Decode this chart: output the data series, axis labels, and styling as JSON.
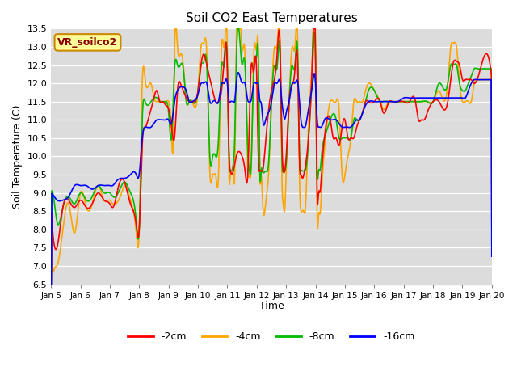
{
  "title": "Soil CO2 East Temperatures",
  "xlabel": "Time",
  "ylabel": "Soil Temperature (C)",
  "ylim": [
    6.5,
    13.5
  ],
  "colors": {
    "2cm": "#ff0000",
    "4cm": "#ffa500",
    "8cm": "#00bb00",
    "16cm": "#0000ff"
  },
  "legend_labels": [
    "-2cm",
    "-4cm",
    "-8cm",
    "-16cm"
  ],
  "annotation_text": "VR_soilco2",
  "annotation_bg": "#ffff99",
  "annotation_border": "#cc8800",
  "annotation_text_color": "#880000",
  "background_color": "#dcdcdc",
  "grid_color": "#ffffff",
  "x_labels": [
    "Jan 5",
    "Jan 6",
    "Jan 7",
    "Jan 8",
    "Jan 9",
    "Jan 10",
    "Jan 11",
    "Jan 12",
    "Jan 13",
    "Jan 14",
    "Jan 15",
    "Jan 16",
    "Jan 17",
    "Jan 18",
    "Jan 19",
    "Jan 20"
  ],
  "line_width": 1.2,
  "keypoints_2cm": [
    [
      0.0,
      8.6
    ],
    [
      0.1,
      7.6
    ],
    [
      0.2,
      7.5
    ],
    [
      0.4,
      8.6
    ],
    [
      0.6,
      8.8
    ],
    [
      0.8,
      8.6
    ],
    [
      1.0,
      8.8
    ],
    [
      1.2,
      8.6
    ],
    [
      1.4,
      8.7
    ],
    [
      1.6,
      9.0
    ],
    [
      1.8,
      8.8
    ],
    [
      2.0,
      8.7
    ],
    [
      2.1,
      8.6
    ],
    [
      2.3,
      9.2
    ],
    [
      2.5,
      9.3
    ],
    [
      2.7,
      8.7
    ],
    [
      2.9,
      8.1
    ],
    [
      3.0,
      8.0
    ],
    [
      3.1,
      10.3
    ],
    [
      3.2,
      10.8
    ],
    [
      3.3,
      11.0
    ],
    [
      3.5,
      11.6
    ],
    [
      3.6,
      11.8
    ],
    [
      3.7,
      11.5
    ],
    [
      3.8,
      11.5
    ],
    [
      3.9,
      11.4
    ],
    [
      4.0,
      11.3
    ],
    [
      4.1,
      10.8
    ],
    [
      4.2,
      10.5
    ],
    [
      4.3,
      11.8
    ],
    [
      4.4,
      12.0
    ],
    [
      4.5,
      11.8
    ],
    [
      4.6,
      11.6
    ],
    [
      4.7,
      11.5
    ],
    [
      4.8,
      11.5
    ],
    [
      5.0,
      11.8
    ],
    [
      5.1,
      12.5
    ],
    [
      5.2,
      12.8
    ],
    [
      5.3,
      12.5
    ],
    [
      5.5,
      11.8
    ],
    [
      5.6,
      11.5
    ],
    [
      5.7,
      11.5
    ],
    [
      5.8,
      11.8
    ],
    [
      5.9,
      12.8
    ],
    [
      6.0,
      12.3
    ],
    [
      6.05,
      10.2
    ],
    [
      6.1,
      9.6
    ],
    [
      6.15,
      9.5
    ],
    [
      6.2,
      9.6
    ],
    [
      6.3,
      10.0
    ],
    [
      6.5,
      10.0
    ],
    [
      6.6,
      9.6
    ],
    [
      6.7,
      9.6
    ],
    [
      6.8,
      12.4
    ],
    [
      6.9,
      12.3
    ],
    [
      7.0,
      12.2
    ],
    [
      7.05,
      10.0
    ],
    [
      7.1,
      9.6
    ],
    [
      7.15,
      9.6
    ],
    [
      7.2,
      9.6
    ],
    [
      7.3,
      10.4
    ],
    [
      7.5,
      11.8
    ],
    [
      7.7,
      12.9
    ],
    [
      7.8,
      12.8
    ],
    [
      7.85,
      10.5
    ],
    [
      7.9,
      9.6
    ],
    [
      7.95,
      9.6
    ],
    [
      8.0,
      10.0
    ],
    [
      8.1,
      11.5
    ],
    [
      8.3,
      12.4
    ],
    [
      8.4,
      12.2
    ],
    [
      8.45,
      9.9
    ],
    [
      8.5,
      9.5
    ],
    [
      8.55,
      9.4
    ],
    [
      8.6,
      9.5
    ],
    [
      8.7,
      10.0
    ],
    [
      8.8,
      11.0
    ],
    [
      8.9,
      12.9
    ],
    [
      9.0,
      12.8
    ],
    [
      9.05,
      9.0
    ],
    [
      9.1,
      9.0
    ],
    [
      9.15,
      9.0
    ],
    [
      9.2,
      9.5
    ],
    [
      9.3,
      10.5
    ],
    [
      9.5,
      11.0
    ],
    [
      9.6,
      10.5
    ],
    [
      9.7,
      10.5
    ],
    [
      9.8,
      10.3
    ],
    [
      9.9,
      10.8
    ],
    [
      10.0,
      11.0
    ],
    [
      10.1,
      10.5
    ],
    [
      10.2,
      10.5
    ],
    [
      10.3,
      10.5
    ],
    [
      10.4,
      10.8
    ],
    [
      10.5,
      11.0
    ],
    [
      10.6,
      11.2
    ],
    [
      10.7,
      11.5
    ],
    [
      10.8,
      11.5
    ],
    [
      11.0,
      11.5
    ],
    [
      11.2,
      11.5
    ],
    [
      11.3,
      11.2
    ],
    [
      11.5,
      11.5
    ],
    [
      11.6,
      11.5
    ],
    [
      11.7,
      11.5
    ],
    [
      11.8,
      11.5
    ],
    [
      12.0,
      11.5
    ],
    [
      12.2,
      11.5
    ],
    [
      12.4,
      11.5
    ],
    [
      12.5,
      11.0
    ],
    [
      12.6,
      11.0
    ],
    [
      12.7,
      11.0
    ],
    [
      12.8,
      11.2
    ],
    [
      13.0,
      11.5
    ],
    [
      13.2,
      11.5
    ],
    [
      13.5,
      11.5
    ],
    [
      13.7,
      12.6
    ],
    [
      13.8,
      12.6
    ],
    [
      13.9,
      12.5
    ],
    [
      14.0,
      12.1
    ],
    [
      14.1,
      12.1
    ],
    [
      14.2,
      12.1
    ],
    [
      14.3,
      12.1
    ],
    [
      14.4,
      12.0
    ],
    [
      14.5,
      12.1
    ],
    [
      15.0,
      12.1
    ]
  ],
  "keypoints_4cm": [
    [
      0.0,
      8.5
    ],
    [
      0.05,
      6.9
    ],
    [
      0.1,
      6.9
    ],
    [
      0.2,
      7.0
    ],
    [
      0.4,
      8.0
    ],
    [
      0.6,
      8.7
    ],
    [
      0.8,
      7.9
    ],
    [
      1.0,
      9.0
    ],
    [
      1.2,
      8.6
    ],
    [
      1.4,
      8.7
    ],
    [
      1.6,
      9.2
    ],
    [
      1.8,
      8.8
    ],
    [
      2.0,
      8.8
    ],
    [
      2.1,
      8.7
    ],
    [
      2.2,
      8.7
    ],
    [
      2.4,
      9.0
    ],
    [
      2.5,
      9.2
    ],
    [
      2.7,
      8.8
    ],
    [
      2.9,
      7.9
    ],
    [
      3.0,
      8.0
    ],
    [
      3.1,
      12.0
    ],
    [
      3.2,
      12.1
    ],
    [
      3.4,
      12.0
    ],
    [
      3.5,
      11.6
    ],
    [
      3.6,
      11.5
    ],
    [
      3.7,
      11.5
    ],
    [
      3.8,
      11.5
    ],
    [
      3.9,
      11.5
    ],
    [
      4.0,
      11.5
    ],
    [
      4.1,
      10.6
    ],
    [
      4.15,
      10.2
    ],
    [
      4.2,
      12.8
    ],
    [
      4.3,
      13.0
    ],
    [
      4.4,
      12.8
    ],
    [
      4.5,
      12.5
    ],
    [
      4.6,
      11.5
    ],
    [
      4.7,
      11.5
    ],
    [
      4.8,
      11.5
    ],
    [
      5.0,
      11.8
    ],
    [
      5.1,
      13.0
    ],
    [
      5.2,
      13.1
    ],
    [
      5.3,
      12.8
    ],
    [
      5.4,
      9.6
    ],
    [
      5.5,
      9.5
    ],
    [
      5.55,
      9.5
    ],
    [
      5.6,
      9.5
    ],
    [
      5.7,
      9.5
    ],
    [
      5.8,
      13.0
    ],
    [
      5.9,
      13.0
    ],
    [
      6.0,
      12.8
    ],
    [
      6.05,
      9.5
    ],
    [
      6.1,
      9.5
    ],
    [
      6.15,
      9.5
    ],
    [
      6.2,
      9.5
    ],
    [
      6.25,
      9.5
    ],
    [
      6.3,
      12.9
    ],
    [
      6.5,
      12.9
    ],
    [
      6.6,
      12.8
    ],
    [
      6.7,
      9.5
    ],
    [
      6.75,
      9.5
    ],
    [
      6.8,
      9.5
    ],
    [
      6.9,
      12.9
    ],
    [
      7.0,
      13.0
    ],
    [
      7.05,
      13.0
    ],
    [
      7.1,
      9.5
    ],
    [
      7.15,
      9.5
    ],
    [
      7.2,
      8.7
    ],
    [
      7.3,
      8.7
    ],
    [
      7.4,
      9.5
    ],
    [
      7.5,
      11.5
    ],
    [
      7.6,
      13.0
    ],
    [
      7.7,
      13.1
    ],
    [
      7.8,
      12.8
    ],
    [
      7.85,
      9.5
    ],
    [
      7.9,
      8.7
    ],
    [
      7.95,
      8.5
    ],
    [
      8.0,
      9.6
    ],
    [
      8.1,
      11.5
    ],
    [
      8.2,
      13.0
    ],
    [
      8.3,
      13.0
    ],
    [
      8.4,
      12.8
    ],
    [
      8.45,
      9.5
    ],
    [
      8.5,
      8.5
    ],
    [
      8.55,
      8.5
    ],
    [
      8.6,
      8.5
    ],
    [
      8.65,
      8.5
    ],
    [
      8.7,
      9.5
    ],
    [
      8.8,
      11.5
    ],
    [
      8.9,
      13.0
    ],
    [
      9.0,
      13.0
    ],
    [
      9.05,
      8.4
    ],
    [
      9.1,
      8.4
    ],
    [
      9.15,
      8.4
    ],
    [
      9.2,
      9.0
    ],
    [
      9.3,
      10.2
    ],
    [
      9.5,
      11.5
    ],
    [
      9.7,
      11.5
    ],
    [
      9.8,
      11.3
    ],
    [
      9.9,
      9.5
    ],
    [
      10.0,
      9.5
    ],
    [
      10.1,
      10.0
    ],
    [
      10.2,
      10.5
    ],
    [
      10.3,
      11.5
    ],
    [
      10.4,
      11.5
    ],
    [
      10.5,
      11.5
    ],
    [
      10.6,
      11.5
    ],
    [
      10.7,
      11.8
    ],
    [
      10.8,
      12.0
    ],
    [
      11.0,
      11.8
    ],
    [
      11.2,
      11.5
    ],
    [
      11.3,
      11.3
    ],
    [
      11.5,
      11.5
    ],
    [
      11.6,
      11.5
    ],
    [
      11.7,
      11.5
    ],
    [
      11.8,
      11.5
    ],
    [
      12.0,
      11.5
    ],
    [
      12.2,
      11.5
    ],
    [
      12.4,
      11.5
    ],
    [
      12.5,
      11.5
    ],
    [
      12.6,
      11.5
    ],
    [
      12.7,
      11.5
    ],
    [
      12.8,
      11.5
    ],
    [
      13.0,
      11.5
    ],
    [
      13.2,
      11.8
    ],
    [
      13.5,
      12.0
    ],
    [
      13.6,
      13.0
    ],
    [
      13.7,
      13.1
    ],
    [
      13.8,
      13.0
    ],
    [
      13.9,
      12.0
    ],
    [
      14.0,
      11.5
    ],
    [
      14.1,
      11.5
    ],
    [
      14.2,
      11.5
    ],
    [
      14.3,
      11.5
    ],
    [
      14.4,
      12.0
    ],
    [
      14.5,
      12.1
    ],
    [
      14.6,
      12.1
    ],
    [
      14.7,
      12.1
    ],
    [
      14.8,
      12.1
    ],
    [
      14.9,
      12.1
    ],
    [
      15.0,
      12.1
    ]
  ],
  "keypoints_8cm": [
    [
      0.0,
      9.0
    ],
    [
      0.1,
      8.8
    ],
    [
      0.2,
      8.2
    ],
    [
      0.4,
      8.6
    ],
    [
      0.6,
      8.9
    ],
    [
      0.8,
      8.7
    ],
    [
      1.0,
      9.0
    ],
    [
      1.2,
      8.8
    ],
    [
      1.4,
      8.9
    ],
    [
      1.6,
      9.2
    ],
    [
      1.8,
      9.0
    ],
    [
      2.0,
      9.0
    ],
    [
      2.1,
      8.9
    ],
    [
      2.2,
      8.9
    ],
    [
      2.4,
      9.2
    ],
    [
      2.5,
      9.3
    ],
    [
      2.7,
      9.0
    ],
    [
      2.9,
      8.2
    ],
    [
      3.0,
      8.0
    ],
    [
      3.1,
      11.0
    ],
    [
      3.2,
      11.5
    ],
    [
      3.4,
      11.5
    ],
    [
      3.5,
      11.6
    ],
    [
      3.6,
      11.6
    ],
    [
      3.7,
      11.5
    ],
    [
      3.8,
      11.5
    ],
    [
      3.9,
      11.5
    ],
    [
      4.0,
      11.2
    ],
    [
      4.1,
      10.5
    ],
    [
      4.2,
      12.4
    ],
    [
      4.3,
      12.5
    ],
    [
      4.4,
      12.5
    ],
    [
      4.5,
      12.4
    ],
    [
      4.6,
      11.5
    ],
    [
      4.7,
      11.5
    ],
    [
      4.8,
      11.5
    ],
    [
      5.0,
      11.8
    ],
    [
      5.1,
      12.5
    ],
    [
      5.2,
      12.6
    ],
    [
      5.3,
      12.5
    ],
    [
      5.4,
      10.0
    ],
    [
      5.5,
      10.0
    ],
    [
      5.6,
      10.0
    ],
    [
      5.7,
      10.5
    ],
    [
      5.8,
      12.5
    ],
    [
      5.9,
      12.5
    ],
    [
      6.0,
      12.5
    ],
    [
      6.05,
      10.0
    ],
    [
      6.1,
      9.6
    ],
    [
      6.15,
      9.6
    ],
    [
      6.2,
      9.8
    ],
    [
      6.25,
      10.5
    ],
    [
      6.3,
      12.5
    ],
    [
      6.5,
      12.5
    ],
    [
      6.6,
      12.5
    ],
    [
      6.7,
      10.0
    ],
    [
      6.75,
      9.6
    ],
    [
      6.8,
      9.6
    ],
    [
      6.9,
      12.5
    ],
    [
      7.0,
      12.8
    ],
    [
      7.05,
      12.8
    ],
    [
      7.1,
      9.6
    ],
    [
      7.15,
      9.6
    ],
    [
      7.2,
      9.6
    ],
    [
      7.3,
      9.6
    ],
    [
      7.4,
      9.8
    ],
    [
      7.5,
      11.5
    ],
    [
      7.6,
      12.5
    ],
    [
      7.7,
      12.5
    ],
    [
      7.8,
      12.5
    ],
    [
      7.85,
      10.0
    ],
    [
      7.9,
      9.6
    ],
    [
      7.95,
      9.6
    ],
    [
      8.0,
      9.8
    ],
    [
      8.1,
      11.5
    ],
    [
      8.2,
      12.5
    ],
    [
      8.3,
      12.5
    ],
    [
      8.4,
      12.5
    ],
    [
      8.45,
      10.0
    ],
    [
      8.5,
      9.6
    ],
    [
      8.55,
      9.6
    ],
    [
      8.6,
      9.6
    ],
    [
      8.65,
      9.6
    ],
    [
      8.7,
      9.8
    ],
    [
      8.8,
      11.0
    ],
    [
      8.9,
      12.5
    ],
    [
      9.0,
      12.5
    ],
    [
      9.05,
      9.6
    ],
    [
      9.1,
      9.6
    ],
    [
      9.15,
      9.6
    ],
    [
      9.2,
      10.0
    ],
    [
      9.3,
      10.5
    ],
    [
      9.5,
      11.0
    ],
    [
      9.7,
      11.0
    ],
    [
      9.8,
      10.5
    ],
    [
      9.9,
      10.5
    ],
    [
      10.0,
      10.5
    ],
    [
      10.1,
      10.5
    ],
    [
      10.2,
      10.5
    ],
    [
      10.3,
      11.0
    ],
    [
      10.4,
      11.0
    ],
    [
      10.5,
      11.0
    ],
    [
      10.6,
      11.2
    ],
    [
      10.7,
      11.5
    ],
    [
      10.8,
      11.8
    ],
    [
      11.0,
      11.8
    ],
    [
      11.2,
      11.5
    ],
    [
      11.3,
      11.5
    ],
    [
      11.5,
      11.5
    ],
    [
      11.6,
      11.5
    ],
    [
      11.8,
      11.5
    ],
    [
      12.0,
      11.5
    ],
    [
      12.2,
      11.5
    ],
    [
      12.4,
      11.5
    ],
    [
      12.6,
      11.5
    ],
    [
      12.8,
      11.5
    ],
    [
      13.0,
      11.5
    ],
    [
      13.2,
      12.0
    ],
    [
      13.5,
      12.0
    ],
    [
      13.6,
      12.5
    ],
    [
      13.7,
      12.5
    ],
    [
      13.8,
      12.5
    ],
    [
      13.9,
      12.0
    ],
    [
      14.0,
      11.8
    ],
    [
      14.1,
      11.8
    ],
    [
      14.2,
      12.0
    ],
    [
      14.3,
      12.2
    ],
    [
      14.4,
      12.4
    ],
    [
      14.5,
      12.4
    ],
    [
      14.6,
      12.4
    ],
    [
      14.7,
      12.4
    ],
    [
      14.8,
      12.4
    ],
    [
      14.9,
      12.4
    ],
    [
      15.0,
      12.4
    ]
  ],
  "keypoints_16cm": [
    [
      0.0,
      9.0
    ],
    [
      0.1,
      8.9
    ],
    [
      0.2,
      8.8
    ],
    [
      0.4,
      8.8
    ],
    [
      0.6,
      8.9
    ],
    [
      0.8,
      9.2
    ],
    [
      1.0,
      9.2
    ],
    [
      1.2,
      9.2
    ],
    [
      1.4,
      9.1
    ],
    [
      1.6,
      9.2
    ],
    [
      1.8,
      9.2
    ],
    [
      2.0,
      9.2
    ],
    [
      2.1,
      9.2
    ],
    [
      2.2,
      9.3
    ],
    [
      2.4,
      9.4
    ],
    [
      2.5,
      9.4
    ],
    [
      2.7,
      9.5
    ],
    [
      2.9,
      9.5
    ],
    [
      3.0,
      9.5
    ],
    [
      3.1,
      10.5
    ],
    [
      3.2,
      10.8
    ],
    [
      3.4,
      10.8
    ],
    [
      3.5,
      10.9
    ],
    [
      3.6,
      11.0
    ],
    [
      3.7,
      11.0
    ],
    [
      3.8,
      11.0
    ],
    [
      3.9,
      11.0
    ],
    [
      4.0,
      11.0
    ],
    [
      4.1,
      10.9
    ],
    [
      4.2,
      11.5
    ],
    [
      4.3,
      11.8
    ],
    [
      4.4,
      11.9
    ],
    [
      4.5,
      11.9
    ],
    [
      4.6,
      11.8
    ],
    [
      4.7,
      11.5
    ],
    [
      4.8,
      11.5
    ],
    [
      5.0,
      11.7
    ],
    [
      5.1,
      12.0
    ],
    [
      5.2,
      12.0
    ],
    [
      5.3,
      12.0
    ],
    [
      5.4,
      11.5
    ],
    [
      5.5,
      11.5
    ],
    [
      5.6,
      11.5
    ],
    [
      5.7,
      11.5
    ],
    [
      5.8,
      12.0
    ],
    [
      5.9,
      12.0
    ],
    [
      6.0,
      12.0
    ],
    [
      6.05,
      11.5
    ],
    [
      6.1,
      11.5
    ],
    [
      6.15,
      11.5
    ],
    [
      6.2,
      11.5
    ],
    [
      6.25,
      11.5
    ],
    [
      6.3,
      12.0
    ],
    [
      6.5,
      12.0
    ],
    [
      6.6,
      12.0
    ],
    [
      6.7,
      11.5
    ],
    [
      6.75,
      11.5
    ],
    [
      6.8,
      11.5
    ],
    [
      6.9,
      12.0
    ],
    [
      7.0,
      12.0
    ],
    [
      7.05,
      12.0
    ],
    [
      7.1,
      11.5
    ],
    [
      7.15,
      11.5
    ],
    [
      7.2,
      11.0
    ],
    [
      7.3,
      11.0
    ],
    [
      7.4,
      11.2
    ],
    [
      7.5,
      11.5
    ],
    [
      7.6,
      12.0
    ],
    [
      7.7,
      12.0
    ],
    [
      7.8,
      12.0
    ],
    [
      7.85,
      11.5
    ],
    [
      7.9,
      11.2
    ],
    [
      7.95,
      11.0
    ],
    [
      8.0,
      11.2
    ],
    [
      8.1,
      11.5
    ],
    [
      8.2,
      12.0
    ],
    [
      8.3,
      12.0
    ],
    [
      8.4,
      12.0
    ],
    [
      8.45,
      11.5
    ],
    [
      8.5,
      11.0
    ],
    [
      8.55,
      10.8
    ],
    [
      8.6,
      10.8
    ],
    [
      8.65,
      10.8
    ],
    [
      8.7,
      11.0
    ],
    [
      8.8,
      11.5
    ],
    [
      8.9,
      12.0
    ],
    [
      9.0,
      12.0
    ],
    [
      9.05,
      11.0
    ],
    [
      9.1,
      10.8
    ],
    [
      9.15,
      10.8
    ],
    [
      9.2,
      10.8
    ],
    [
      9.3,
      11.0
    ],
    [
      9.5,
      11.0
    ],
    [
      9.7,
      11.0
    ],
    [
      9.8,
      10.9
    ],
    [
      9.9,
      10.8
    ],
    [
      10.0,
      10.8
    ],
    [
      10.1,
      10.8
    ],
    [
      10.2,
      10.8
    ],
    [
      10.3,
      10.9
    ],
    [
      10.4,
      11.0
    ],
    [
      10.5,
      11.0
    ],
    [
      10.6,
      11.2
    ],
    [
      10.7,
      11.4
    ],
    [
      10.8,
      11.5
    ],
    [
      11.0,
      11.5
    ],
    [
      11.2,
      11.5
    ],
    [
      11.3,
      11.5
    ],
    [
      11.5,
      11.5
    ],
    [
      11.6,
      11.5
    ],
    [
      11.8,
      11.5
    ],
    [
      12.0,
      11.6
    ],
    [
      12.2,
      11.6
    ],
    [
      12.4,
      11.6
    ],
    [
      12.6,
      11.6
    ],
    [
      12.8,
      11.6
    ],
    [
      13.0,
      11.6
    ],
    [
      13.2,
      11.6
    ],
    [
      13.5,
      11.6
    ],
    [
      13.6,
      11.6
    ],
    [
      13.7,
      11.6
    ],
    [
      13.8,
      11.6
    ],
    [
      13.9,
      11.6
    ],
    [
      14.0,
      11.6
    ],
    [
      14.1,
      11.6
    ],
    [
      14.2,
      11.8
    ],
    [
      14.3,
      12.0
    ],
    [
      14.4,
      12.1
    ],
    [
      14.5,
      12.1
    ],
    [
      14.6,
      12.1
    ],
    [
      14.7,
      12.1
    ],
    [
      14.8,
      12.1
    ],
    [
      14.9,
      12.1
    ],
    [
      15.0,
      12.1
    ]
  ]
}
